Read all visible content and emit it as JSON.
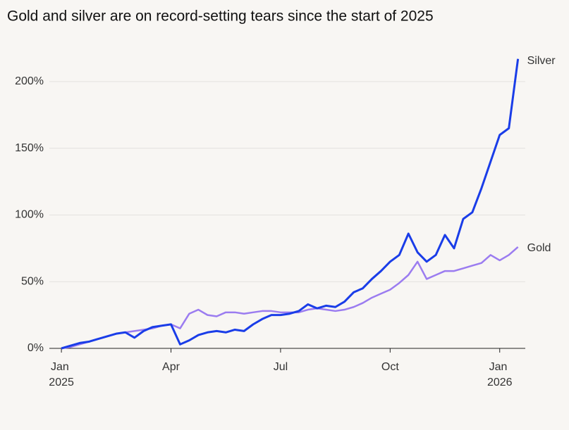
{
  "chart_data": {
    "type": "line",
    "title": "Gold and silver are on record-setting tears since the start of 2025",
    "x": [
      0,
      0.25,
      0.5,
      0.75,
      1,
      1.25,
      1.5,
      1.75,
      2,
      2.25,
      2.5,
      2.75,
      3,
      3.25,
      3.5,
      3.75,
      4,
      4.25,
      4.5,
      4.75,
      5,
      5.25,
      5.5,
      5.75,
      6,
      6.25,
      6.5,
      6.75,
      7,
      7.25,
      7.5,
      7.75,
      8,
      8.25,
      8.5,
      8.75,
      9,
      9.25,
      9.5,
      9.75,
      10,
      10.25,
      10.5,
      10.75,
      11,
      11.25,
      11.5,
      11.75,
      12,
      12.25,
      12.5
    ],
    "series": [
      {
        "name": "Silver",
        "color": "#1a3de8",
        "values": [
          0,
          2,
          4,
          5,
          7,
          9,
          11,
          12,
          8,
          13,
          16,
          17,
          18,
          3,
          6,
          10,
          12,
          13,
          12,
          14,
          13,
          18,
          22,
          25,
          25,
          26,
          28,
          33,
          30,
          32,
          31,
          35,
          42,
          45,
          52,
          58,
          65,
          70,
          86,
          72,
          65,
          70,
          85,
          75,
          97,
          102,
          120,
          140,
          160,
          165,
          217
        ]
      },
      {
        "name": "Gold",
        "color": "#9b7cf0",
        "values": [
          0,
          1,
          3,
          5,
          7,
          9,
          11,
          12,
          13,
          14,
          15,
          17,
          18,
          15,
          26,
          29,
          25,
          24,
          27,
          27,
          26,
          27,
          28,
          28,
          27,
          27,
          27,
          29,
          30,
          29,
          28,
          29,
          31,
          34,
          38,
          41,
          44,
          49,
          55,
          65,
          52,
          55,
          58,
          58,
          60,
          62,
          64,
          70,
          66,
          70,
          76
        ]
      }
    ],
    "xlim": [
      -0.33,
      12.7
    ],
    "xticks": [
      {
        "value": 0,
        "label": "Jan 2025"
      },
      {
        "value": 3,
        "label": "Apr"
      },
      {
        "value": 6,
        "label": "Jul"
      },
      {
        "value": 9,
        "label": "Oct"
      },
      {
        "value": 12,
        "label": "Jan 2026"
      }
    ],
    "ylim": [
      0,
      220
    ],
    "yticks": [
      {
        "value": 0,
        "label": "0%"
      },
      {
        "value": 50,
        "label": "50%"
      },
      {
        "value": 100,
        "label": "100%"
      },
      {
        "value": 150,
        "label": "150%"
      },
      {
        "value": 200,
        "label": "200%"
      }
    ],
    "grid": true
  }
}
